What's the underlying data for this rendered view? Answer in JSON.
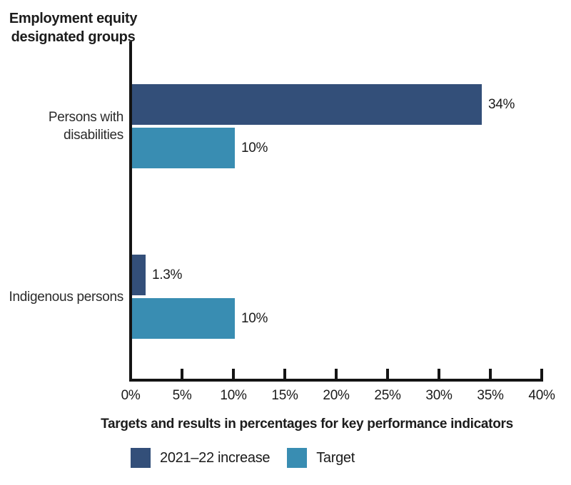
{
  "chart_data": {
    "type": "bar",
    "orientation": "horizontal",
    "y_axis_title": {
      "line1": "Employment equity",
      "line2": "designated groups"
    },
    "categories": [
      "Persons with disabilities",
      "Indigenous persons"
    ],
    "series": [
      {
        "name": "2021–22 increase",
        "color": "#334f79",
        "values": [
          34,
          1.3
        ],
        "value_labels": [
          "34%",
          "1.3%"
        ]
      },
      {
        "name": "Target",
        "color": "#398db2",
        "values": [
          10,
          10
        ],
        "value_labels": [
          "10%",
          "10%"
        ]
      }
    ],
    "xlim": [
      0,
      40
    ],
    "xticks": [
      0,
      5,
      10,
      15,
      20,
      25,
      30,
      35,
      40
    ],
    "xtick_labels": [
      "0%",
      "5%",
      "10%",
      "15%",
      "20%",
      "25%",
      "30%",
      "35%",
      "40%"
    ],
    "xlabel": "Targets and results in percentages for key performance indicators",
    "grid": false,
    "legend_position": "bottom",
    "axis_color": "#141414",
    "text_color": "#1a1a1a"
  }
}
